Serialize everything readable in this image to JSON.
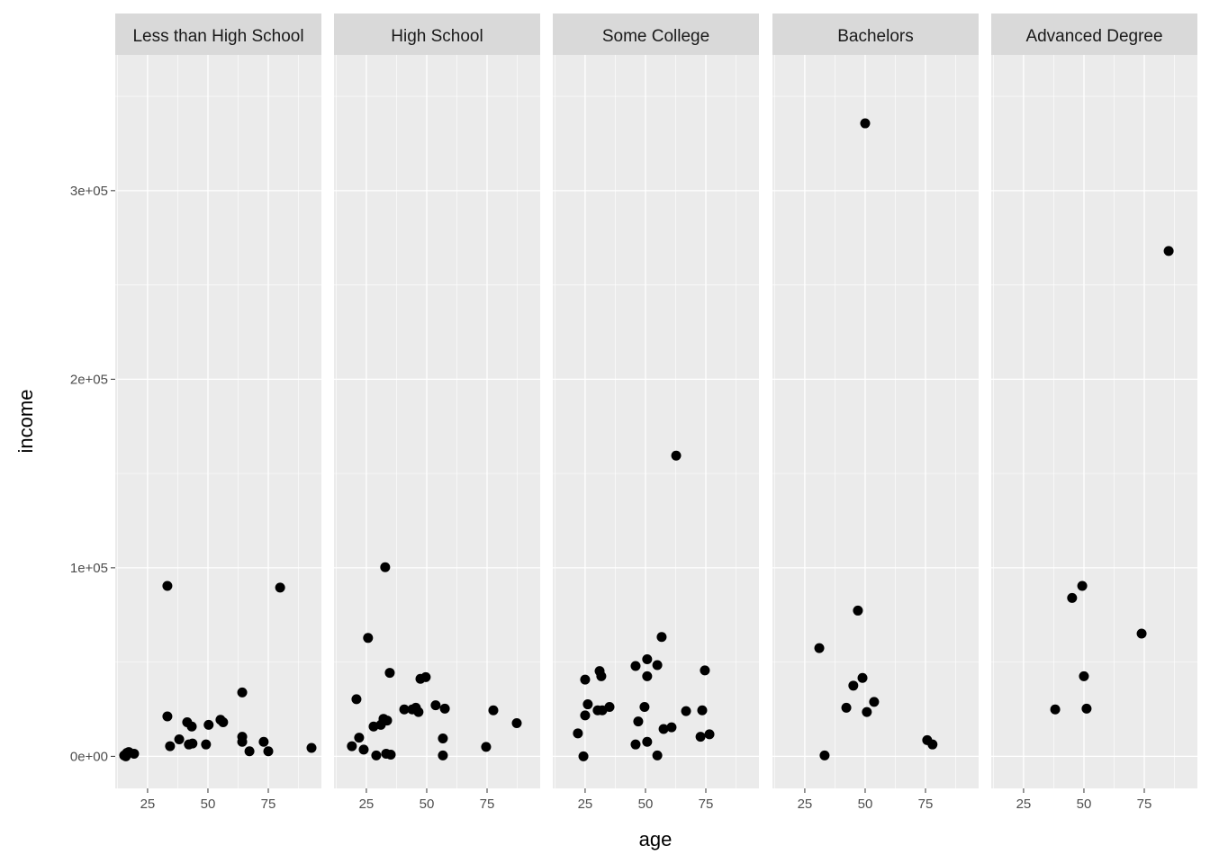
{
  "chart_data": {
    "type": "scatter",
    "title": "",
    "xlabel": "age",
    "ylabel": "income",
    "xlim": [
      11.6,
      97
    ],
    "ylim": [
      -17000,
      372000
    ],
    "x_ticks": [
      25,
      50,
      75
    ],
    "x_tick_labels": [
      "25",
      "50",
      "75"
    ],
    "y_ticks": [
      0,
      100000,
      200000,
      300000
    ],
    "y_tick_labels": [
      "0e+00",
      "1e+05",
      "2e+05",
      "3e+05"
    ],
    "grid": true,
    "colors": {
      "panel": "#EBEBEB",
      "strip": "#D9D9D9",
      "point": "#000000",
      "grid": "#FFFFFF"
    },
    "facets": [
      {
        "name": "Less than High School",
        "points": [
          [
            33.2,
            90400
          ],
          [
            79.9,
            89500
          ],
          [
            64.2,
            33900
          ],
          [
            33.2,
            21200
          ],
          [
            41.4,
            18100
          ],
          [
            43.3,
            15800
          ],
          [
            55.2,
            19400
          ],
          [
            56.3,
            18100
          ],
          [
            50.3,
            16700
          ],
          [
            38.1,
            9000
          ],
          [
            34.3,
            5400
          ],
          [
            42.1,
            6300
          ],
          [
            43.6,
            6800
          ],
          [
            49.2,
            6300
          ],
          [
            64.2,
            10400
          ],
          [
            64.2,
            7700
          ],
          [
            67.2,
            2700
          ],
          [
            73.1,
            7700
          ],
          [
            75.0,
            2700
          ],
          [
            92.9,
            4500
          ],
          [
            15.3,
            500
          ],
          [
            16.4,
            1800
          ],
          [
            17.2,
            2300
          ],
          [
            19.4,
            1400
          ],
          [
            16.0,
            0
          ]
        ]
      },
      {
        "name": "High School",
        "points": [
          [
            32.8,
            100300
          ],
          [
            25.7,
            62800
          ],
          [
            34.7,
            44300
          ],
          [
            47.4,
            41100
          ],
          [
            49.6,
            42000
          ],
          [
            20.9,
            30300
          ],
          [
            40.7,
            24900
          ],
          [
            44.0,
            24900
          ],
          [
            45.5,
            25800
          ],
          [
            46.6,
            23500
          ],
          [
            53.7,
            27100
          ],
          [
            57.5,
            25300
          ],
          [
            77.6,
            24400
          ],
          [
            87.3,
            17600
          ],
          [
            32.1,
            19900
          ],
          [
            33.6,
            19000
          ],
          [
            31.0,
            16700
          ],
          [
            28.0,
            15800
          ],
          [
            22.0,
            9900
          ],
          [
            19.0,
            5400
          ],
          [
            23.9,
            3600
          ],
          [
            56.7,
            9500
          ],
          [
            74.6,
            5000
          ],
          [
            29.1,
            500
          ],
          [
            33.2,
            1400
          ],
          [
            35.1,
            900
          ],
          [
            56.7,
            500
          ]
        ]
      },
      {
        "name": "Some College",
        "points": [
          [
            62.7,
            159500
          ],
          [
            56.7,
            63300
          ],
          [
            50.7,
            51500
          ],
          [
            54.9,
            48400
          ],
          [
            45.9,
            47900
          ],
          [
            74.6,
            45600
          ],
          [
            31.0,
            45200
          ],
          [
            31.7,
            42500
          ],
          [
            50.7,
            42500
          ],
          [
            25.0,
            40700
          ],
          [
            26.1,
            27600
          ],
          [
            35.1,
            26200
          ],
          [
            49.6,
            26200
          ],
          [
            30.2,
            24400
          ],
          [
            32.1,
            24400
          ],
          [
            25.0,
            21700
          ],
          [
            66.8,
            24000
          ],
          [
            73.5,
            24400
          ],
          [
            47.0,
            18500
          ],
          [
            60.8,
            15400
          ],
          [
            57.5,
            14500
          ],
          [
            76.5,
            11700
          ],
          [
            72.8,
            10400
          ],
          [
            22.0,
            12200
          ],
          [
            45.9,
            6300
          ],
          [
            50.7,
            7700
          ],
          [
            54.9,
            500
          ],
          [
            24.3,
            0
          ]
        ]
      },
      {
        "name": "Bachelors",
        "points": [
          [
            50.0,
            335700
          ],
          [
            47.0,
            77300
          ],
          [
            31.0,
            57400
          ],
          [
            48.9,
            41600
          ],
          [
            45.1,
            37500
          ],
          [
            53.7,
            28900
          ],
          [
            42.2,
            25800
          ],
          [
            50.7,
            23500
          ],
          [
            75.7,
            8600
          ],
          [
            77.9,
            6300
          ],
          [
            33.2,
            500
          ]
        ]
      },
      {
        "name": "Advanced Degree",
        "points": [
          [
            85.1,
            268000
          ],
          [
            49.3,
            90400
          ],
          [
            45.1,
            84000
          ],
          [
            73.9,
            65100
          ],
          [
            50.0,
            42500
          ],
          [
            38.1,
            24900
          ],
          [
            51.1,
            25300
          ]
        ]
      }
    ]
  }
}
